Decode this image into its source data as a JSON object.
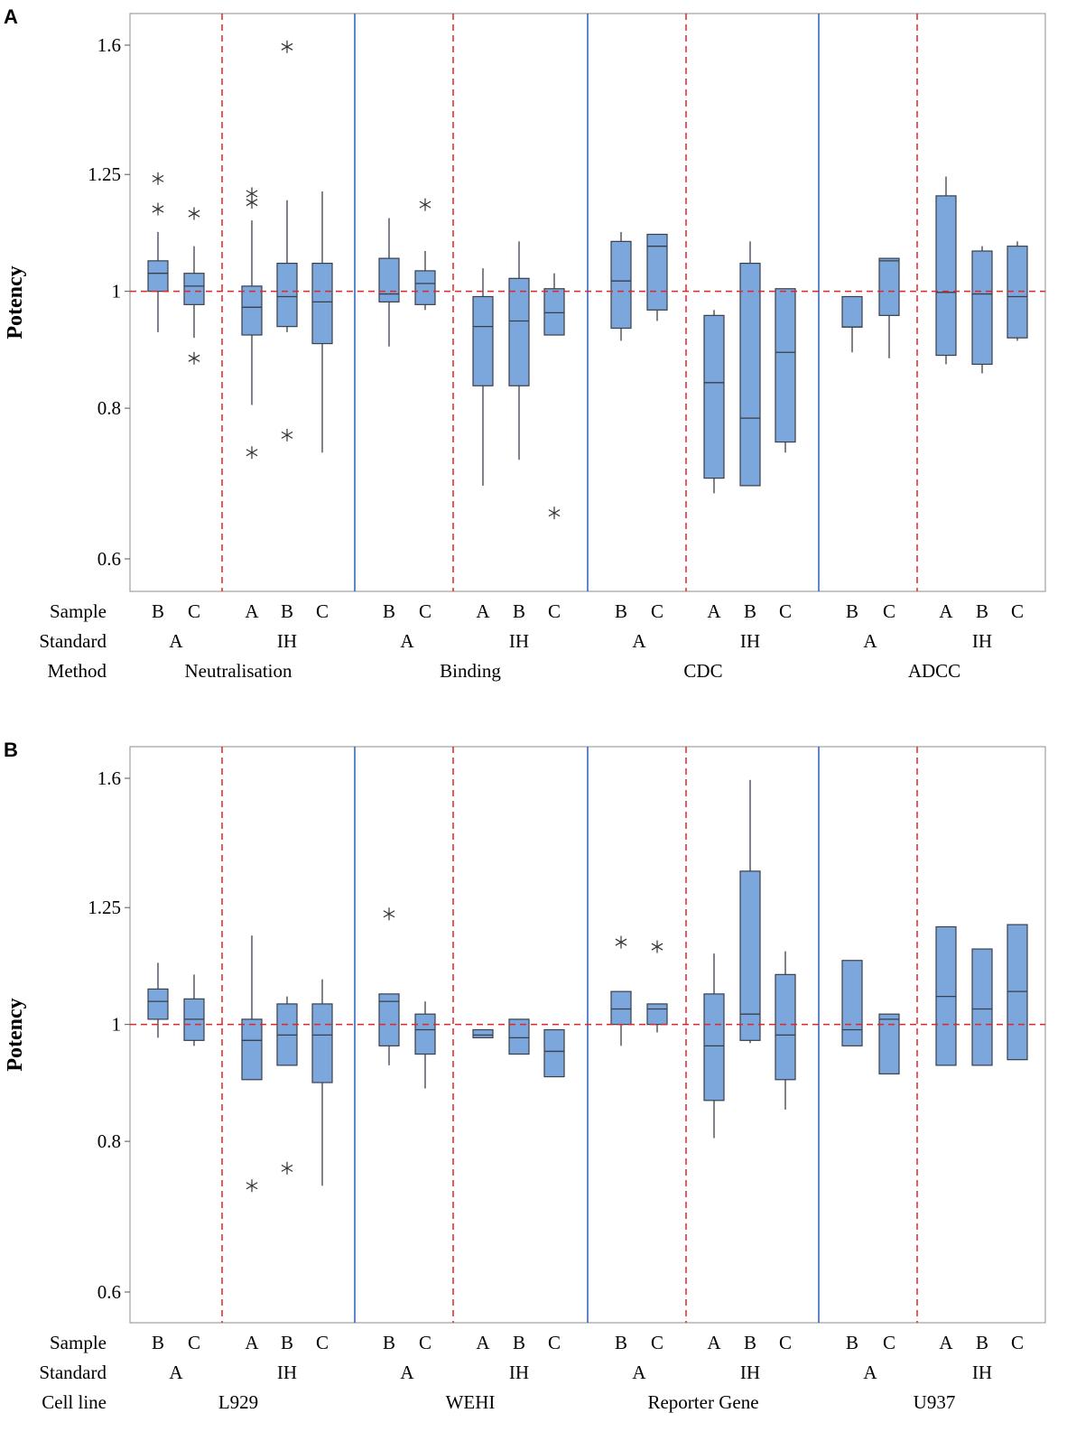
{
  "chart_data": [
    {
      "panel": "A",
      "type": "boxplot",
      "ylabel": "Potency",
      "yscale": "log",
      "ylim": [
        0.58,
        1.65
      ],
      "yticks": [
        0.6,
        0.8,
        1,
        1.25,
        1.6
      ],
      "ytick_labels": [
        "0.6",
        "0.8",
        "1",
        "1.25",
        "1.6"
      ],
      "reference_line": 1,
      "row_labels": [
        "Sample",
        "Standard",
        "Method"
      ],
      "groups": [
        {
          "name": "Neutralisation",
          "subgroups": [
            {
              "standard": "A",
              "boxes": [
                {
                  "sample": "B",
                  "q1": 1.0,
                  "median": 1.035,
                  "q3": 1.06,
                  "whisker_low": 0.925,
                  "whisker_high": 1.12,
                  "outliers": [
                    1.17,
                    1.24
                  ]
                },
                {
                  "sample": "C",
                  "q1": 0.975,
                  "median": 1.01,
                  "q3": 1.035,
                  "whisker_low": 0.915,
                  "whisker_high": 1.09,
                  "outliers": [
                    0.88,
                    1.16
                  ]
                }
              ]
            },
            {
              "standard": "IH",
              "boxes": [
                {
                  "sample": "A",
                  "q1": 0.92,
                  "median": 0.97,
                  "q3": 1.01,
                  "whisker_low": 0.805,
                  "whisker_high": 1.145,
                  "outliers": [
                    0.735,
                    1.185,
                    1.205
                  ]
                },
                {
                  "sample": "B",
                  "q1": 0.935,
                  "median": 0.99,
                  "q3": 1.055,
                  "whisker_low": 0.925,
                  "whisker_high": 1.19,
                  "outliers": [
                    0.76,
                    1.595
                  ]
                },
                {
                  "sample": "C",
                  "q1": 0.905,
                  "median": 0.98,
                  "q3": 1.055,
                  "whisker_low": 0.735,
                  "whisker_high": 1.21,
                  "outliers": []
                }
              ]
            }
          ]
        },
        {
          "name": "Binding",
          "subgroups": [
            {
              "standard": "A",
              "boxes": [
                {
                  "sample": "B",
                  "q1": 0.98,
                  "median": 0.995,
                  "q3": 1.065,
                  "whisker_low": 0.9,
                  "whisker_high": 1.15,
                  "outliers": []
                },
                {
                  "sample": "C",
                  "q1": 0.975,
                  "median": 1.015,
                  "q3": 1.04,
                  "whisker_low": 0.965,
                  "whisker_high": 1.08,
                  "outliers": [
                    1.18
                  ]
                }
              ]
            },
            {
              "standard": "IH",
              "boxes": [
                {
                  "sample": "A",
                  "q1": 0.835,
                  "median": 0.935,
                  "q3": 0.99,
                  "whisker_low": 0.69,
                  "whisker_high": 1.045,
                  "outliers": []
                },
                {
                  "sample": "B",
                  "q1": 0.835,
                  "median": 0.945,
                  "q3": 1.025,
                  "whisker_low": 0.725,
                  "whisker_high": 1.1,
                  "outliers": []
                },
                {
                  "sample": "C",
                  "q1": 0.92,
                  "median": 0.96,
                  "q3": 1.005,
                  "whisker_low": 0.92,
                  "whisker_high": 1.035,
                  "outliers": [
                    0.655
                  ]
                }
              ]
            }
          ]
        },
        {
          "name": "CDC",
          "subgroups": [
            {
              "standard": "A",
              "boxes": [
                {
                  "sample": "B",
                  "q1": 0.932,
                  "median": 1.02,
                  "q3": 1.1,
                  "whisker_low": 0.91,
                  "whisker_high": 1.12,
                  "outliers": []
                },
                {
                  "sample": "C",
                  "q1": 0.965,
                  "median": 1.09,
                  "q3": 1.115,
                  "whisker_low": 0.945,
                  "whisker_high": 1.115,
                  "outliers": []
                }
              ]
            },
            {
              "standard": "IH",
              "boxes": [
                {
                  "sample": "A",
                  "q1": 0.7,
                  "median": 0.84,
                  "q3": 0.955,
                  "whisker_low": 0.68,
                  "whisker_high": 0.965,
                  "outliers": []
                },
                {
                  "sample": "B",
                  "q1": 0.69,
                  "median": 0.785,
                  "q3": 1.055,
                  "whisker_low": 0.69,
                  "whisker_high": 1.1,
                  "outliers": []
                },
                {
                  "sample": "C",
                  "q1": 0.75,
                  "median": 0.89,
                  "q3": 1.005,
                  "whisker_low": 0.735,
                  "whisker_high": 1.005,
                  "outliers": []
                }
              ]
            }
          ]
        },
        {
          "name": "ADCC",
          "subgroups": [
            {
              "standard": "A",
              "boxes": [
                {
                  "sample": "B",
                  "q1": 0.934,
                  "median": 0.934,
                  "q3": 0.99,
                  "whisker_low": 0.89,
                  "whisker_high": 0.99,
                  "outliers": []
                },
                {
                  "sample": "C",
                  "q1": 0.955,
                  "median": 1.06,
                  "q3": 1.065,
                  "whisker_low": 0.88,
                  "whisker_high": 1.065,
                  "outliers": []
                }
              ]
            },
            {
              "standard": "IH",
              "boxes": [
                {
                  "sample": "A",
                  "q1": 0.885,
                  "median": 0.998,
                  "q3": 1.2,
                  "whisker_low": 0.87,
                  "whisker_high": 1.245,
                  "outliers": []
                },
                {
                  "sample": "B",
                  "q1": 0.87,
                  "median": 0.995,
                  "q3": 1.08,
                  "whisker_low": 0.855,
                  "whisker_high": 1.09,
                  "outliers": []
                },
                {
                  "sample": "C",
                  "q1": 0.915,
                  "median": 0.99,
                  "q3": 1.09,
                  "whisker_low": 0.91,
                  "whisker_high": 1.1,
                  "outliers": []
                }
              ]
            }
          ]
        }
      ]
    },
    {
      "panel": "B",
      "type": "boxplot",
      "ylabel": "Potency",
      "yscale": "log",
      "ylim": [
        0.58,
        1.65
      ],
      "yticks": [
        0.6,
        0.8,
        1,
        1.25,
        1.6
      ],
      "ytick_labels": [
        "0.6",
        "0.8",
        "1",
        "1.25",
        "1.6"
      ],
      "reference_line": 1,
      "row_labels": [
        "Sample",
        "Standard",
        "Cell line"
      ],
      "groups": [
        {
          "name": "L929",
          "subgroups": [
            {
              "standard": "A",
              "boxes": [
                {
                  "sample": "B",
                  "q1": 1.01,
                  "median": 1.045,
                  "q3": 1.07,
                  "whisker_low": 0.975,
                  "whisker_high": 1.125,
                  "outliers": []
                },
                {
                  "sample": "C",
                  "q1": 0.97,
                  "median": 1.01,
                  "q3": 1.05,
                  "whisker_low": 0.96,
                  "whisker_high": 1.1,
                  "outliers": []
                }
              ]
            },
            {
              "standard": "IH",
              "boxes": [
                {
                  "sample": "A",
                  "q1": 0.9,
                  "median": 0.97,
                  "q3": 1.01,
                  "whisker_low": 0.9,
                  "whisker_high": 1.185,
                  "outliers": [
                    0.735
                  ]
                },
                {
                  "sample": "B",
                  "q1": 0.925,
                  "median": 0.98,
                  "q3": 1.04,
                  "whisker_low": 0.925,
                  "whisker_high": 1.055,
                  "outliers": [
                    0.76
                  ]
                },
                {
                  "sample": "C",
                  "q1": 0.895,
                  "median": 0.98,
                  "q3": 1.04,
                  "whisker_low": 0.735,
                  "whisker_high": 1.09,
                  "outliers": []
                }
              ]
            }
          ]
        },
        {
          "name": "WEHI",
          "subgroups": [
            {
              "standard": "A",
              "boxes": [
                {
                  "sample": "B",
                  "q1": 0.96,
                  "median": 1.045,
                  "q3": 1.06,
                  "whisker_low": 0.925,
                  "whisker_high": 1.06,
                  "outliers": [
                    1.235
                  ]
                },
                {
                  "sample": "C",
                  "q1": 0.945,
                  "median": 0.99,
                  "q3": 1.02,
                  "whisker_low": 0.885,
                  "whisker_high": 1.045,
                  "outliers": []
                }
              ]
            },
            {
              "standard": "IH",
              "boxes": [
                {
                  "sample": "A",
                  "q1": 0.975,
                  "median": 0.98,
                  "q3": 0.99,
                  "whisker_low": 0.975,
                  "whisker_high": 0.99,
                  "outliers": []
                },
                {
                  "sample": "B",
                  "q1": 0.945,
                  "median": 0.975,
                  "q3": 1.01,
                  "whisker_low": 0.945,
                  "whisker_high": 1.01,
                  "outliers": []
                },
                {
                  "sample": "C",
                  "q1": 0.905,
                  "median": 0.95,
                  "q3": 0.99,
                  "whisker_low": 0.905,
                  "whisker_high": 0.99,
                  "outliers": []
                }
              ]
            }
          ]
        },
        {
          "name": "Reporter Gene",
          "subgroups": [
            {
              "standard": "A",
              "boxes": [
                {
                  "sample": "B",
                  "q1": 1.0,
                  "median": 1.03,
                  "q3": 1.065,
                  "whisker_low": 0.96,
                  "whisker_high": 1.065,
                  "outliers": [
                    1.17
                  ]
                },
                {
                  "sample": "C",
                  "q1": 1.0,
                  "median": 1.03,
                  "q3": 1.04,
                  "whisker_low": 0.985,
                  "whisker_high": 1.04,
                  "outliers": [
                    1.16
                  ]
                }
              ]
            },
            {
              "standard": "IH",
              "boxes": [
                {
                  "sample": "A",
                  "q1": 0.865,
                  "median": 0.96,
                  "q3": 1.06,
                  "whisker_low": 0.805,
                  "whisker_high": 1.145,
                  "outliers": []
                },
                {
                  "sample": "B",
                  "q1": 0.97,
                  "median": 1.02,
                  "q3": 1.34,
                  "whisker_low": 0.965,
                  "whisker_high": 1.595,
                  "outliers": []
                },
                {
                  "sample": "C",
                  "q1": 0.9,
                  "median": 0.98,
                  "q3": 1.1,
                  "whisker_low": 0.85,
                  "whisker_high": 1.15,
                  "outliers": []
                }
              ]
            }
          ]
        },
        {
          "name": "U937",
          "subgroups": [
            {
              "standard": "A",
              "boxes": [
                {
                  "sample": "B",
                  "q1": 0.96,
                  "median": 0.99,
                  "q3": 1.13,
                  "whisker_low": 0.96,
                  "whisker_high": 1.13,
                  "outliers": []
                },
                {
                  "sample": "C",
                  "q1": 0.91,
                  "median": 1.01,
                  "q3": 1.02,
                  "whisker_low": 0.91,
                  "whisker_high": 1.02,
                  "outliers": []
                }
              ]
            },
            {
              "standard": "IH",
              "boxes": [
                {
                  "sample": "A",
                  "q1": 0.925,
                  "median": 1.055,
                  "q3": 1.205,
                  "whisker_low": 0.925,
                  "whisker_high": 1.205,
                  "outliers": []
                },
                {
                  "sample": "B",
                  "q1": 0.925,
                  "median": 1.03,
                  "q3": 1.155,
                  "whisker_low": 0.925,
                  "whisker_high": 1.155,
                  "outliers": []
                },
                {
                  "sample": "C",
                  "q1": 0.935,
                  "median": 1.065,
                  "q3": 1.21,
                  "whisker_low": 0.935,
                  "whisker_high": 1.21,
                  "outliers": []
                }
              ]
            }
          ]
        }
      ]
    }
  ],
  "style": {
    "box_fill": "#7ba7dd",
    "box_stroke": "#3a3f4a",
    "reference_line_color": "#e0262a",
    "dashed_divider_color": "#e0262a",
    "solid_divider_color": "#2a5fbd",
    "frame_color": "#a0a0a0"
  }
}
